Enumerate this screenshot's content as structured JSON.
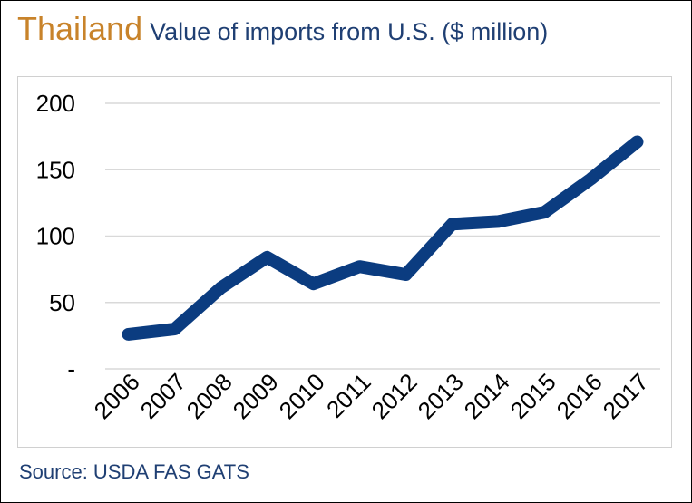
{
  "header": {
    "country": "Thailand",
    "subtitle": "Value of imports from U.S. ($ million)"
  },
  "source": "Source: USDA FAS GATS",
  "colors": {
    "title_accent": "#c8832a",
    "text_navy": "#1f3f73",
    "line": "#0b3c80",
    "grid": "#d9d9d9"
  },
  "chart_data": {
    "type": "line",
    "title": "Value of imports from U.S. ($ million)",
    "xlabel": "",
    "ylabel": "",
    "categories": [
      "2006",
      "2007",
      "2008",
      "2009",
      "2010",
      "2011",
      "2012",
      "2013",
      "2014",
      "2015",
      "2016",
      "2017"
    ],
    "series": [
      {
        "values": [
          26,
          30,
          61,
          84,
          64,
          77,
          71,
          109,
          111,
          118,
          143,
          171
        ]
      }
    ],
    "ylim": [
      0,
      200
    ],
    "yticks": [
      0,
      50,
      100,
      150,
      200
    ],
    "ytick_labels": [
      "-",
      "50",
      "100",
      "150",
      "200"
    ],
    "grid": true,
    "legend": "none"
  }
}
